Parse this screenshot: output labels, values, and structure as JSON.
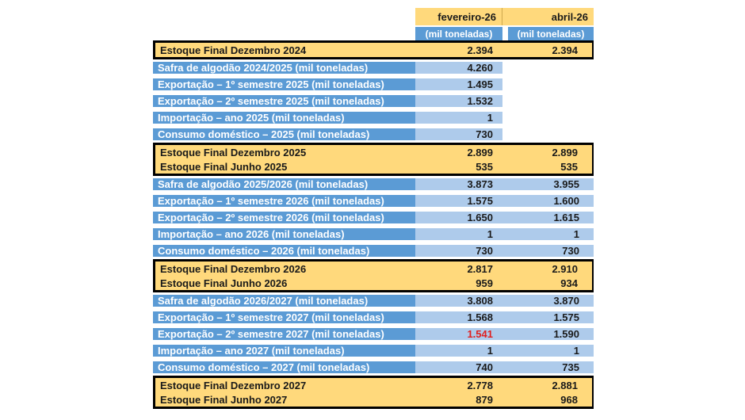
{
  "colors": {
    "header_and_stock_rows_yellow": "#FFD97C",
    "label_column_blue": "#5B9BD5",
    "value_cells_light_blue": "#AECBEB",
    "highlight_red": "#E02020",
    "block_border_black": "#000000",
    "header_text_white": "#FFFFFF"
  },
  "chart_data": {
    "type": "table",
    "title": "",
    "columns": {
      "col1_month": "fevereiro-26",
      "col2_month": "abril-26",
      "col1_unit": "(mil toneladas)",
      "col2_unit": "(mil toneladas)"
    },
    "highlighted_value": {
      "row": "Exportação – 2º semestre 2027 (mil toneladas)",
      "column": "fevereiro-26",
      "value": "1.541",
      "color": "#E02020"
    },
    "rows": [
      {
        "label": "Estoque Final Dezembro 2024",
        "fev": "2.394",
        "abr": "2.394",
        "style": "yellow"
      },
      {
        "label": "Safra de algodão 2024/2025 (mil toneladas)",
        "fev": "4.260",
        "abr": "",
        "style": "blue"
      },
      {
        "label": "Exportação – 1º semestre 2025 (mil toneladas)",
        "fev": "1.495",
        "abr": "",
        "style": "blue"
      },
      {
        "label": "Exportação – 2º semestre 2025 (mil toneladas)",
        "fev": "1.532",
        "abr": "",
        "style": "blue"
      },
      {
        "label": "Importação – ano 2025 (mil toneladas)",
        "fev": "1",
        "abr": "",
        "style": "blue"
      },
      {
        "label": "Consumo doméstico – 2025 (mil toneladas)",
        "fev": "730",
        "abr": "",
        "style": "blue"
      },
      {
        "label": "Estoque Final Dezembro 2025",
        "fev": "2.899",
        "abr": "2.899",
        "style": "yellow"
      },
      {
        "label": "Estoque Final Junho 2025",
        "fev": "535",
        "abr": "535",
        "style": "yellow"
      },
      {
        "label": "Safra de algodão 2025/2026 (mil toneladas)",
        "fev": "3.873",
        "abr": "3.955",
        "style": "blue"
      },
      {
        "label": "Exportação – 1º semestre 2026 (mil toneladas)",
        "fev": "1.575",
        "abr": "1.600",
        "style": "blue"
      },
      {
        "label": "Exportação – 2º semestre 2026 (mil toneladas)",
        "fev": "1.650",
        "abr": "1.615",
        "style": "blue"
      },
      {
        "label": "Importação – ano 2026 (mil toneladas)",
        "fev": "1",
        "abr": "1",
        "style": "blue"
      },
      {
        "label": "Consumo doméstico – 2026 (mil toneladas)",
        "fev": "730",
        "abr": "730",
        "style": "blue"
      },
      {
        "label": "Estoque Final Dezembro 2026",
        "fev": "2.817",
        "abr": "2.910",
        "style": "yellow"
      },
      {
        "label": "Estoque Final Junho 2026",
        "fev": "959",
        "abr": "934",
        "style": "yellow"
      },
      {
        "label": "Safra de algodão 2026/2027 (mil toneladas)",
        "fev": "3.808",
        "abr": "3.870",
        "style": "blue"
      },
      {
        "label": "Exportação – 1º semestre 2027 (mil toneladas)",
        "fev": "1.568",
        "abr": "1.575",
        "style": "blue"
      },
      {
        "label": "Exportação – 2º semestre 2027 (mil toneladas)",
        "fev": "1.541",
        "abr": "1.590",
        "style": "blue"
      },
      {
        "label": "Importação – ano 2027 (mil toneladas)",
        "fev": "1",
        "abr": "1",
        "style": "blue"
      },
      {
        "label": "Consumo doméstico – 2027 (mil toneladas)",
        "fev": "740",
        "abr": "735",
        "style": "blue"
      },
      {
        "label": "Estoque Final Dezembro 2027",
        "fev": "2.778",
        "abr": "2.881",
        "style": "yellow"
      },
      {
        "label": "Estoque Final Junho 2027",
        "fev": "879",
        "abr": "968",
        "style": "yellow"
      }
    ]
  }
}
